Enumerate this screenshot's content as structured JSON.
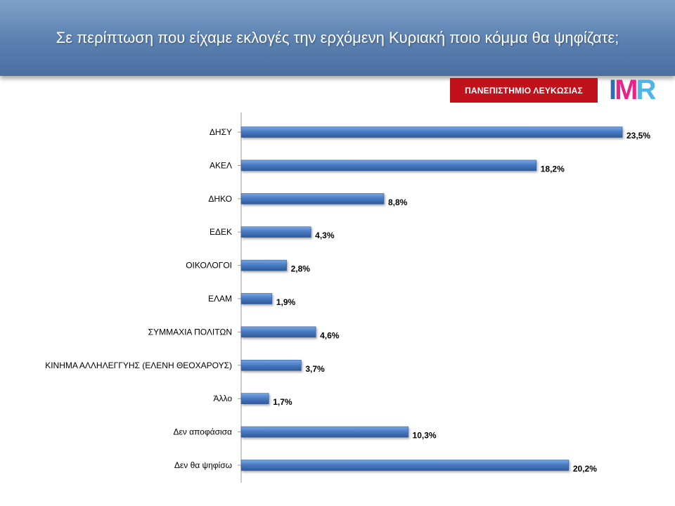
{
  "header": {
    "title": "Σε περίπτωση που είχαμε εκλογές την ερχόμενη Κυριακή ποιο κόμμα θα ψηφίζατε;"
  },
  "logos": {
    "university": "ΠΑΝΕΠΙΣΤΗΜΙΟ ΛΕΥΚΩΣΙΑΣ",
    "imr": {
      "i": "I",
      "m": "M",
      "r": "R"
    }
  },
  "colors": {
    "bar": "#4a7cc4",
    "bar_dark": "#2f5a9a",
    "title_bg": "#5a80b0",
    "university_red": "#c1121c"
  },
  "chart_data": {
    "type": "bar",
    "orientation": "horizontal",
    "categories": [
      "ΔΗΣΥ",
      "ΑΚΕΛ",
      "ΔΗΚΟ",
      "ΕΔΕΚ",
      "ΟΙΚΟΛΟΓΟΙ",
      "ΕΛΑΜ",
      "ΣΥΜΜΑΧΙΑ ΠΟΛΙΤΩΝ",
      "ΚΙΝΗΜΑ ΑΛΛΗΛΕΓΓΥΗΣ (ΕΛΕΝΗ ΘΕΟΧΑΡΟΥΣ)",
      "Άλλο",
      "Δεν αποφάσισα",
      "Δεν θα ψηφίσω"
    ],
    "values": [
      23.5,
      18.2,
      8.8,
      4.3,
      2.8,
      1.9,
      4.6,
      3.7,
      1.7,
      10.3,
      20.2
    ],
    "value_labels": [
      "23,5%",
      "18,2%",
      "8,8%",
      "4,3%",
      "2,8%",
      "1,9%",
      "4,6%",
      "3,7%",
      "1,7%",
      "10,3%",
      "20,2%"
    ],
    "xlim": [
      0,
      23.5
    ],
    "grid": false,
    "legend": "none"
  }
}
